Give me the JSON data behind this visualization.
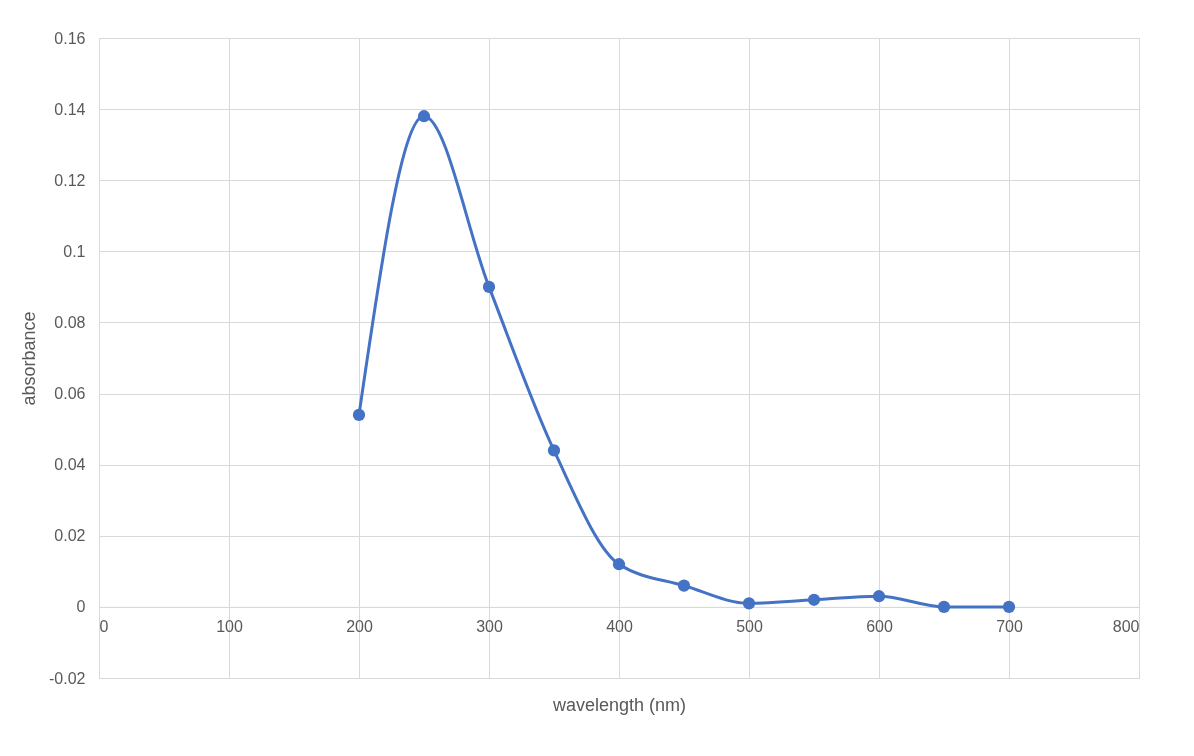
{
  "chart_data": {
    "type": "line",
    "xlabel": "wavelength (nm)",
    "ylabel": "absorbance",
    "x": [
      200,
      250,
      300,
      350,
      400,
      450,
      500,
      550,
      600,
      650,
      700
    ],
    "series": [
      {
        "color": "#4472c4",
        "values": [
          0.054,
          0.138,
          0.09,
          0.044,
          0.012,
          0.006,
          0.001,
          0.002,
          0.003,
          0.0,
          0.0
        ]
      }
    ],
    "xlim": [
      0,
      800
    ],
    "xticks": [
      0,
      100,
      200,
      300,
      400,
      500,
      600,
      700,
      800
    ],
    "ylim": [
      -0.02,
      0.16
    ],
    "yticks": [
      -0.02,
      0,
      0.02,
      0.04,
      0.06,
      0.08,
      0.1,
      0.12,
      0.14,
      0.16
    ],
    "grid": true,
    "marker": "circle",
    "line_style": "solid"
  }
}
